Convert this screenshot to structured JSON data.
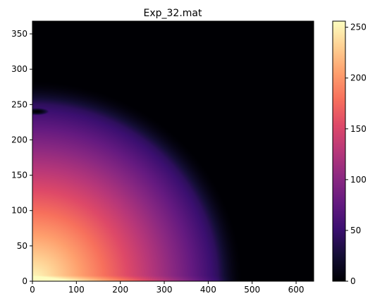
{
  "chart_data": {
    "type": "heatmap",
    "title": "Exp_32.mat",
    "xlabel": "",
    "ylabel": "",
    "colormap": "magma",
    "xlim": [
      0,
      640
    ],
    "ylim": [
      0,
      368
    ],
    "x_ticks": [
      0,
      100,
      200,
      300,
      400,
      500,
      600
    ],
    "y_ticks": [
      0,
      50,
      100,
      150,
      200,
      250,
      300,
      350
    ],
    "colorbar": {
      "range": [
        0,
        256
      ],
      "ticks": [
        0,
        50,
        100,
        150,
        200,
        250
      ]
    },
    "field": {
      "description_of_values": "intensity highest near origin, decaying outward",
      "peak_value": 256,
      "x_extent_at_zero": 480,
      "y_extent_at_zero": 285
    },
    "grid": false,
    "legend": "colorbar-right"
  }
}
